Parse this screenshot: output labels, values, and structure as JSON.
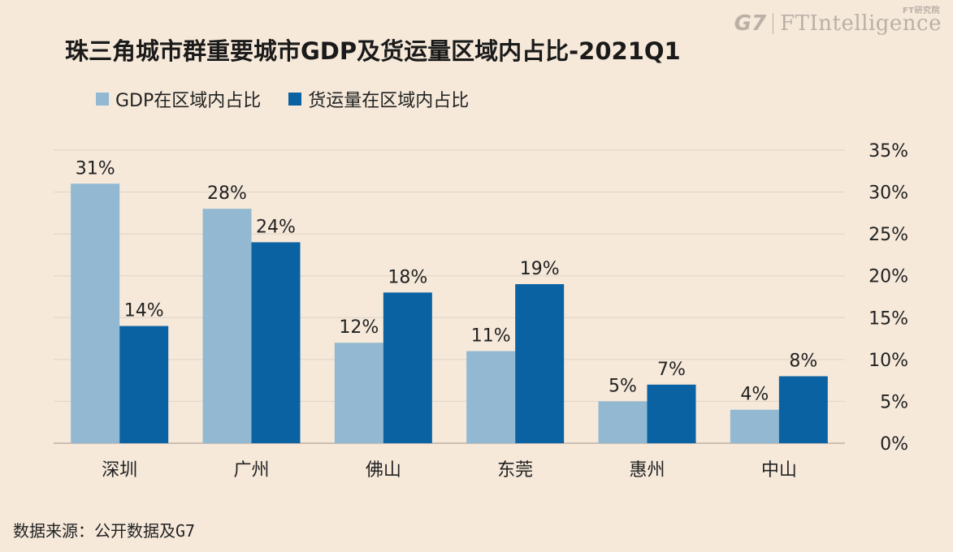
{
  "brand": {
    "g7": "G7",
    "fti": "FTIntelligence",
    "fti_sub": "FT研究院"
  },
  "colors": {
    "background": "#f6e9da",
    "gdp": "#92b9d1",
    "freight": "#0b62a3",
    "grid": "#e2d7ca",
    "axis": "#bdb3a8"
  },
  "chart_data": {
    "type": "bar",
    "title": "珠三角城市群重要城市GDP及货运量区域内占比-2021Q1",
    "categories": [
      "深圳",
      "广州",
      "佛山",
      "东莞",
      "惠州",
      "中山"
    ],
    "series": [
      {
        "name": "GDP在区域内占比",
        "values": [
          31,
          28,
          12,
          11,
          5,
          4
        ],
        "labels": [
          "31%",
          "28%",
          "12%",
          "11%",
          "5%",
          "4%"
        ]
      },
      {
        "name": "货运量在区域内占比",
        "values": [
          14,
          24,
          18,
          19,
          7,
          8
        ],
        "labels": [
          "14%",
          "24%",
          "18%",
          "19%",
          "7%",
          "8%"
        ]
      }
    ],
    "ylim": [
      0,
      35
    ],
    "yticks": [
      0,
      5,
      10,
      15,
      20,
      25,
      30,
      35
    ],
    "ytick_labels": [
      "0%",
      "5%",
      "10%",
      "15%",
      "20%",
      "25%",
      "30%",
      "35%"
    ],
    "y_axis_side": "right",
    "grid": true,
    "legend_position": "top-left"
  },
  "source": "数据来源：公开数据及G7"
}
